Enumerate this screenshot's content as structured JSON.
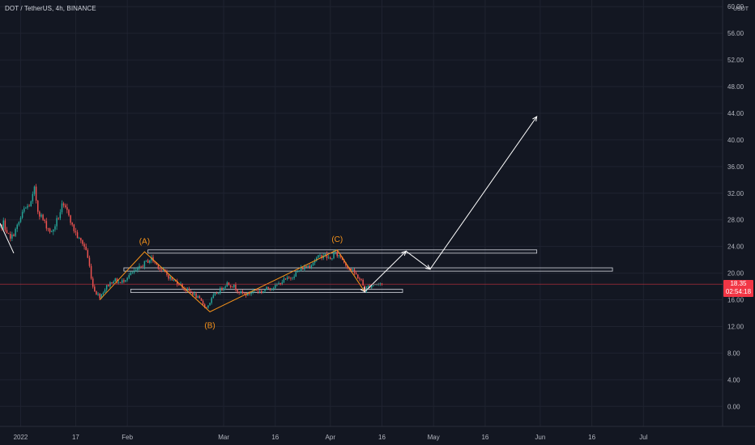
{
  "header": {
    "symbol_title": "DOT / TetherUS, 4h, BINANCE"
  },
  "axis": {
    "currency_label": "USDT"
  },
  "last_price": {
    "value": "18.35",
    "countdown": "02:54:18"
  },
  "colors": {
    "background": "#131722",
    "grid": "#1f2330",
    "axis_text": "#b2b5be",
    "candle_up": "#26a69a",
    "candle_down": "#ef5350",
    "wave_line": "#f7931a",
    "wave_label": "#f7931a",
    "projection": "#ffffff",
    "zone_border": "#d1d4dc",
    "price_line": "#f23645"
  },
  "chart_data": {
    "type": "candlestick",
    "title": "",
    "xlabel": "",
    "ylabel": "",
    "y_unit": "USDT",
    "ylim": [
      -3,
      61
    ],
    "y_ticks": [
      0,
      4,
      8,
      12,
      16,
      20,
      24,
      28,
      32,
      36,
      40,
      44,
      48,
      52,
      56,
      60
    ],
    "y_tick_labels": [
      "0.00",
      "4.00",
      "8.00",
      "12.00",
      "16.00",
      "20.00",
      "24.00",
      "28.00",
      "32.00",
      "36.00",
      "40.00",
      "44.00",
      "48.00",
      "52.00",
      "56.00",
      "60.00"
    ],
    "xlim": [
      "2021-12-26",
      "2022-07-24"
    ],
    "x_ticks": [
      {
        "date": "2022-01-01",
        "label": "2022"
      },
      {
        "date": "2022-01-17",
        "label": "17"
      },
      {
        "date": "2022-02-01",
        "label": "Feb"
      },
      {
        "date": "2022-03-01",
        "label": "Mar"
      },
      {
        "date": "2022-03-16",
        "label": "16"
      },
      {
        "date": "2022-04-01",
        "label": "Apr"
      },
      {
        "date": "2022-04-16",
        "label": "16"
      },
      {
        "date": "2022-05-01",
        "label": "May"
      },
      {
        "date": "2022-05-16",
        "label": "16"
      },
      {
        "date": "2022-06-01",
        "label": "Jun"
      },
      {
        "date": "2022-06-16",
        "label": "16"
      },
      {
        "date": "2022-07-01",
        "label": "Jul"
      }
    ],
    "grid": true,
    "last_price": 18.35,
    "price_path": [
      [
        "2021-12-24",
        25.5
      ],
      [
        "2021-12-27",
        27.5
      ],
      [
        "2021-12-29",
        25.0
      ],
      [
        "2021-12-31",
        27.0
      ],
      [
        "2022-01-02",
        29.5
      ],
      [
        "2022-01-04",
        30.5
      ],
      [
        "2022-01-05",
        32.5
      ],
      [
        "2022-01-06",
        29.5
      ],
      [
        "2022-01-08",
        27.5
      ],
      [
        "2022-01-10",
        26.0
      ],
      [
        "2022-01-12",
        28.5
      ],
      [
        "2022-01-13",
        30.0
      ],
      [
        "2022-01-15",
        29.0
      ],
      [
        "2022-01-16",
        27.0
      ],
      [
        "2022-01-18",
        25.0
      ],
      [
        "2022-01-19",
        24.5
      ],
      [
        "2022-01-20",
        23.5
      ],
      [
        "2022-01-21",
        21.0
      ],
      [
        "2022-01-22",
        18.0
      ],
      [
        "2022-01-23",
        17.0
      ],
      [
        "2022-01-24",
        16.5
      ],
      [
        "2022-01-26",
        18.0
      ],
      [
        "2022-01-28",
        19.0
      ],
      [
        "2022-01-30",
        18.5
      ],
      [
        "2022-02-01",
        19.5
      ],
      [
        "2022-02-04",
        20.5
      ],
      [
        "2022-02-06",
        21.5
      ],
      [
        "2022-02-08",
        22.2
      ],
      [
        "2022-02-10",
        21.0
      ],
      [
        "2022-02-12",
        20.0
      ],
      [
        "2022-02-14",
        19.0
      ],
      [
        "2022-02-16",
        18.5
      ],
      [
        "2022-02-18",
        17.5
      ],
      [
        "2022-02-20",
        17.0
      ],
      [
        "2022-02-22",
        16.0
      ],
      [
        "2022-02-24",
        14.8
      ],
      [
        "2022-02-26",
        16.5
      ],
      [
        "2022-02-28",
        17.5
      ],
      [
        "2022-03-02",
        18.5
      ],
      [
        "2022-03-04",
        18.0
      ],
      [
        "2022-03-06",
        17.0
      ],
      [
        "2022-03-08",
        16.8
      ],
      [
        "2022-03-10",
        17.5
      ],
      [
        "2022-03-12",
        17.2
      ],
      [
        "2022-03-14",
        17.8
      ],
      [
        "2022-03-16",
        18.0
      ],
      [
        "2022-03-18",
        18.8
      ],
      [
        "2022-03-20",
        19.2
      ],
      [
        "2022-03-22",
        20.0
      ],
      [
        "2022-03-24",
        20.8
      ],
      [
        "2022-03-26",
        21.2
      ],
      [
        "2022-03-28",
        22.2
      ],
      [
        "2022-03-30",
        22.8
      ],
      [
        "2022-04-01",
        22.0
      ],
      [
        "2022-04-02",
        23.0
      ],
      [
        "2022-04-04",
        22.5
      ],
      [
        "2022-04-06",
        21.0
      ],
      [
        "2022-04-08",
        20.0
      ],
      [
        "2022-04-10",
        18.8
      ],
      [
        "2022-04-11",
        17.5
      ],
      [
        "2022-04-12",
        18.0
      ],
      [
        "2022-04-14",
        18.4
      ],
      [
        "2022-04-16",
        18.35
      ]
    ],
    "wave_path": [
      [
        "2022-01-24",
        16.0
      ],
      [
        "2022-02-06",
        23.2
      ],
      [
        "2022-02-25",
        14.2
      ],
      [
        "2022-04-03",
        23.5
      ],
      [
        "2022-04-11",
        17.2
      ]
    ],
    "wave_labels": [
      {
        "text": "(A)",
        "x": "2022-02-06",
        "y": 23.2
      },
      {
        "text": "(B)",
        "x": "2022-02-25",
        "y": 14.2
      },
      {
        "text": "(C)",
        "x": "2022-04-03",
        "y": 23.5
      }
    ],
    "projection_path": [
      [
        "2022-04-11",
        17.2
      ],
      [
        "2022-04-23",
        23.3
      ],
      [
        "2022-04-30",
        20.6
      ],
      [
        "2022-05-31",
        43.5
      ]
    ],
    "zones": [
      {
        "x_start": "2022-02-07",
        "x_end": "2022-05-31",
        "y_low": 23.0,
        "y_high": 23.5
      },
      {
        "x_start": "2022-01-31",
        "x_end": "2022-06-22",
        "y_low": 20.3,
        "y_high": 20.8
      },
      {
        "x_start": "2022-02-02",
        "x_end": "2022-04-22",
        "y_low": 17.1,
        "y_high": 17.6
      }
    ]
  }
}
